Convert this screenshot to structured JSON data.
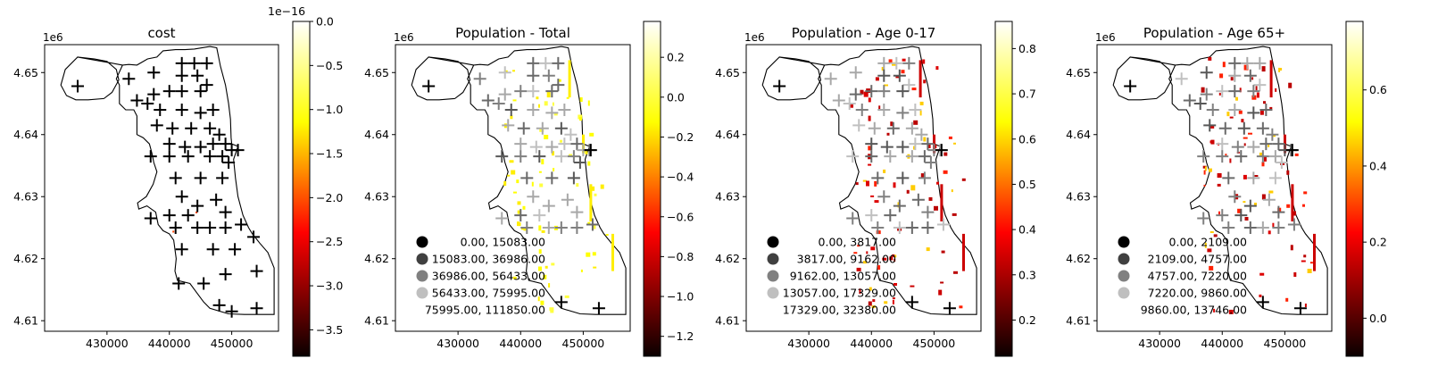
{
  "chart_data": [
    {
      "type": "map",
      "title": "cost",
      "axis_offset_label": "1e6",
      "xlim": [
        420000,
        457500
      ],
      "ylim": [
        4.6083,
        4.6545
      ],
      "x_ticks": [
        {
          "v": 430000,
          "label": "430000"
        },
        {
          "v": 440000,
          "label": "440000"
        },
        {
          "v": 450000,
          "label": "450000"
        }
      ],
      "y_ticks": [
        {
          "v": 4.61,
          "label": "4.61"
        },
        {
          "v": 4.62,
          "label": "4.62"
        },
        {
          "v": 4.63,
          "label": "4.63"
        },
        {
          "v": 4.64,
          "label": "4.64"
        },
        {
          "v": 4.65,
          "label": "4.65"
        }
      ],
      "colormap": "hot",
      "colorbar": {
        "min": -3.8,
        "max": 0.0,
        "offset_label": "1e−16",
        "ticks": [
          {
            "v": 0.0,
            "label": "0.0"
          },
          {
            "v": -0.5,
            "label": "−0.5"
          },
          {
            "v": -1.0,
            "label": "−1.0"
          },
          {
            "v": -1.5,
            "label": "−1.5"
          },
          {
            "v": -2.0,
            "label": "−2.0"
          },
          {
            "v": -2.5,
            "label": "−2.5"
          },
          {
            "v": -3.0,
            "label": "−3.0"
          },
          {
            "v": -3.5,
            "label": "−3.5"
          }
        ]
      },
      "legend": null,
      "marker_color": "#000000"
    },
    {
      "type": "map",
      "title": "Population - Total",
      "axis_offset_label": "1e6",
      "xlim": [
        420000,
        457500
      ],
      "ylim": [
        4.6083,
        4.6545
      ],
      "x_ticks": [
        {
          "v": 430000,
          "label": "430000"
        },
        {
          "v": 440000,
          "label": "440000"
        },
        {
          "v": 450000,
          "label": "450000"
        }
      ],
      "y_ticks": [
        {
          "v": 4.61,
          "label": "4.61"
        },
        {
          "v": 4.62,
          "label": "4.62"
        },
        {
          "v": 4.63,
          "label": "4.63"
        },
        {
          "v": 4.64,
          "label": "4.64"
        },
        {
          "v": 4.65,
          "label": "4.65"
        }
      ],
      "colormap": "hot",
      "colorbar": {
        "min": -1.3,
        "max": 0.38,
        "offset_label": "",
        "ticks": [
          {
            "v": 0.2,
            "label": "0.2"
          },
          {
            "v": 0.0,
            "label": "0.0"
          },
          {
            "v": -0.2,
            "label": "−0.2"
          },
          {
            "v": -0.4,
            "label": "−0.4"
          },
          {
            "v": -0.6,
            "label": "−0.6"
          },
          {
            "v": -0.8,
            "label": "−0.8"
          },
          {
            "v": -1.0,
            "label": "−1.0"
          },
          {
            "v": -1.2,
            "label": "−1.2"
          }
        ]
      },
      "legend": {
        "placement": "lower-left",
        "entries": [
          "0.00,  15083.00",
          "15083.00,  36986.00",
          "36986.00,  56433.00",
          "56433.00,  75995.00",
          "75995.00, 111850.00"
        ],
        "colors": [
          "#000000",
          "#404040",
          "#808080",
          "#bfbfbf",
          "#ffffff"
        ]
      },
      "marker_color": "#808080"
    },
    {
      "type": "map",
      "title": "Population - Age 0-17",
      "axis_offset_label": "1e6",
      "xlim": [
        420000,
        457500
      ],
      "ylim": [
        4.6083,
        4.6545
      ],
      "x_ticks": [
        {
          "v": 430000,
          "label": "430000"
        },
        {
          "v": 440000,
          "label": "440000"
        },
        {
          "v": 450000,
          "label": "450000"
        }
      ],
      "y_ticks": [
        {
          "v": 4.61,
          "label": "4.61"
        },
        {
          "v": 4.62,
          "label": "4.62"
        },
        {
          "v": 4.63,
          "label": "4.63"
        },
        {
          "v": 4.64,
          "label": "4.64"
        },
        {
          "v": 4.65,
          "label": "4.65"
        }
      ],
      "colormap": "hot",
      "colorbar": {
        "min": 0.12,
        "max": 0.86,
        "offset_label": "",
        "ticks": [
          {
            "v": 0.8,
            "label": "0.8"
          },
          {
            "v": 0.7,
            "label": "0.7"
          },
          {
            "v": 0.6,
            "label": "0.6"
          },
          {
            "v": 0.5,
            "label": "0.5"
          },
          {
            "v": 0.4,
            "label": "0.4"
          },
          {
            "v": 0.3,
            "label": "0.3"
          },
          {
            "v": 0.2,
            "label": "0.2"
          }
        ]
      },
      "legend": {
        "placement": "lower-left",
        "entries": [
          "0.00,  3817.00",
          "3817.00,  9162.00",
          "9162.00, 13057.00",
          "13057.00, 17329.00",
          "17329.00, 32380.00"
        ],
        "colors": [
          "#000000",
          "#404040",
          "#808080",
          "#bfbfbf",
          "#ffffff"
        ]
      },
      "marker_color": "#808080"
    },
    {
      "type": "map",
      "title": "Population - Age 65+",
      "axis_offset_label": "1e6",
      "xlim": [
        420000,
        457500
      ],
      "ylim": [
        4.6083,
        4.6545
      ],
      "x_ticks": [
        {
          "v": 430000,
          "label": "430000"
        },
        {
          "v": 440000,
          "label": "440000"
        },
        {
          "v": 450000,
          "label": "450000"
        }
      ],
      "y_ticks": [
        {
          "v": 4.61,
          "label": "4.61"
        },
        {
          "v": 4.62,
          "label": "4.62"
        },
        {
          "v": 4.63,
          "label": "4.63"
        },
        {
          "v": 4.64,
          "label": "4.64"
        },
        {
          "v": 4.65,
          "label": "4.65"
        }
      ],
      "colormap": "hot",
      "colorbar": {
        "min": -0.1,
        "max": 0.78,
        "offset_label": "",
        "ticks": [
          {
            "v": 0.6,
            "label": "0.6"
          },
          {
            "v": 0.4,
            "label": "0.4"
          },
          {
            "v": 0.2,
            "label": "0.2"
          },
          {
            "v": 0.0,
            "label": "0.0"
          }
        ]
      },
      "legend": {
        "placement": "lower-left",
        "entries": [
          "0.00,  2109.00",
          "2109.00,  4757.00",
          "4757.00,  7220.00",
          "7220.00,  9860.00",
          "9860.00, 13746.00"
        ],
        "colors": [
          "#000000",
          "#404040",
          "#808080",
          "#bfbfbf",
          "#ffffff"
        ]
      },
      "marker_color": "#808080"
    }
  ]
}
